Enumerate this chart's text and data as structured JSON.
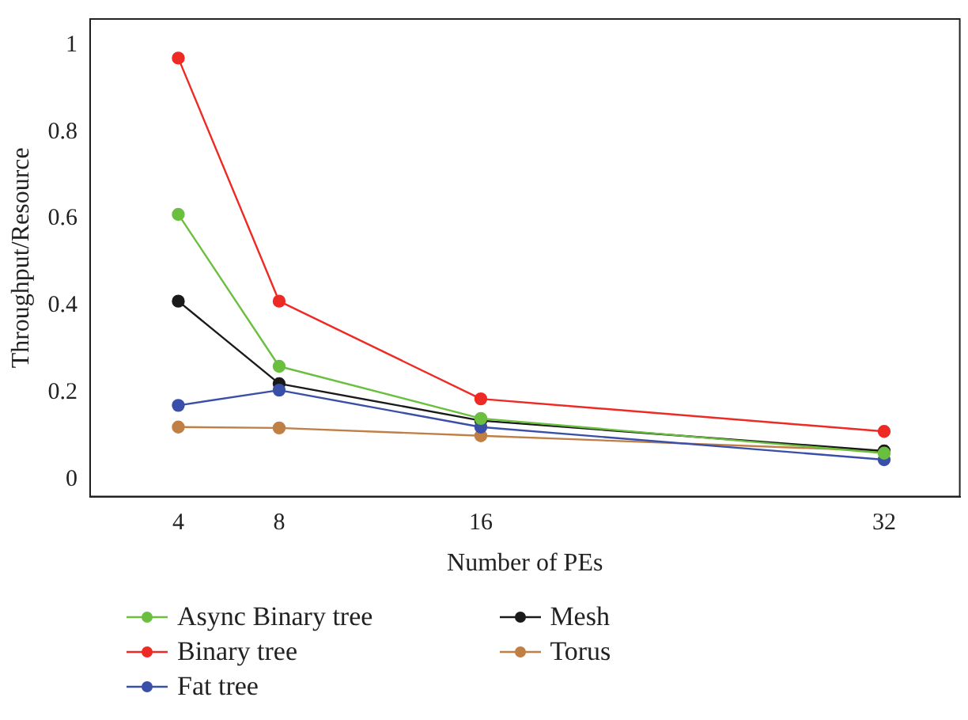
{
  "chart_data": {
    "type": "line",
    "xlabel": "Number of PEs",
    "ylabel": "Throughput/Resource",
    "x": [
      4,
      8,
      16,
      32
    ],
    "xlim": [
      0.5,
      35
    ],
    "xticks": [
      4,
      8,
      16,
      32
    ],
    "ylim": [
      -0.04,
      1.06
    ],
    "yticks": [
      0,
      0.2,
      0.4,
      0.6,
      0.8,
      1
    ],
    "marker": "circle",
    "grid": false,
    "legend": "bottom",
    "series": [
      {
        "name": "Async Binary tree",
        "color": "#6abf3f",
        "values": [
          0.61,
          0.26,
          0.14,
          0.06
        ]
      },
      {
        "name": "Binary tree",
        "color": "#ee2a24",
        "values": [
          0.97,
          0.41,
          0.185,
          0.11
        ]
      },
      {
        "name": "Fat tree",
        "color": "#3a4fa8",
        "values": [
          0.17,
          0.205,
          0.12,
          0.045
        ]
      },
      {
        "name": "Mesh",
        "color": "#1a1a1a",
        "values": [
          0.41,
          0.22,
          0.135,
          0.065
        ]
      },
      {
        "name": "Torus",
        "color": "#c07f45",
        "values": [
          0.12,
          0.118,
          0.1,
          0.065
        ]
      }
    ]
  }
}
